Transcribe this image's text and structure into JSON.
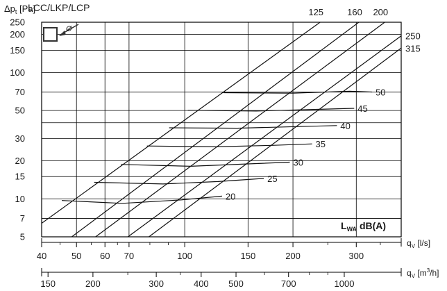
{
  "chart_data": {
    "type": "line",
    "title": "LCC/LKP/LCP",
    "scale": {
      "x": "log",
      "y": "log"
    },
    "ylabel": {
      "main": "Δp",
      "sub": "t",
      "unit": " [Pa]"
    },
    "x1label": {
      "main": "q",
      "sub": "V",
      "unit": " [l/s]"
    },
    "x2label": {
      "main": "q",
      "sub": "V",
      "unit_pre": " [m",
      "sup": "3",
      "unit_post": "/h]"
    },
    "legend_text": {
      "main": "L",
      "sub": "WA",
      "unit": " dB(A)"
    },
    "ylim": [
      5,
      250
    ],
    "xlim_ls": [
      40,
      400
    ],
    "xlim_m3h": [
      144,
      1440
    ],
    "yticks": [
      5,
      7,
      10,
      15,
      20,
      30,
      50,
      70,
      100,
      150,
      200,
      250
    ],
    "ytick_labels": [
      "5",
      "7",
      "10",
      "15",
      "20",
      "30",
      "50",
      "70",
      "100",
      "150",
      "200",
      "250"
    ],
    "xticks_ls": [
      40,
      50,
      60,
      70,
      100,
      150,
      200,
      300
    ],
    "xtick_labels_ls": [
      "40",
      "50",
      "60",
      "70",
      "100",
      "150",
      "200",
      "300"
    ],
    "xticks_m3h": [
      150,
      200,
      300,
      400,
      500,
      700,
      1000
    ],
    "xtick_labels_m3h": [
      "150",
      "200",
      "300",
      "400",
      "500",
      "700",
      "1000"
    ],
    "xminor_ls": [
      45,
      55,
      65,
      80,
      90,
      250,
      350
    ],
    "xminor_m3h": [
      250,
      350,
      600,
      800,
      900
    ],
    "vgrid_ls": [
      50,
      60,
      70,
      100,
      150,
      200,
      300
    ],
    "hgrid": [
      7,
      10,
      15,
      20,
      30,
      40,
      50,
      70,
      100,
      150,
      200
    ],
    "series": [
      {
        "name": "125",
        "points": [
          [
            40,
            6.4
          ],
          [
            238,
            250
          ]
        ]
      },
      {
        "name": "160",
        "points": [
          [
            48.5,
            5
          ],
          [
            305,
            250
          ]
        ]
      },
      {
        "name": "200",
        "points": [
          [
            56.5,
            5
          ],
          [
            360,
            250
          ]
        ]
      },
      {
        "name": "250",
        "points": [
          [
            69.5,
            5
          ],
          [
            400,
            195
          ]
        ]
      },
      {
        "name": "315",
        "points": [
          [
            79.5,
            5
          ],
          [
            400,
            156
          ]
        ]
      }
    ],
    "noise_curves": [
      {
        "name": "20",
        "points": [
          [
            45.5,
            9.7
          ],
          [
            67,
            9.2
          ],
          [
            98,
            9.8
          ],
          [
            127,
            10.5
          ]
        ]
      },
      {
        "name": "25",
        "points": [
          [
            56,
            13.5
          ],
          [
            87,
            13.1
          ],
          [
            124,
            13.7
          ],
          [
            166,
            14.5
          ]
        ]
      },
      {
        "name": "30",
        "points": [
          [
            66.5,
            18.7
          ],
          [
            104,
            18.1
          ],
          [
            150,
            18.9
          ],
          [
            196,
            19.5
          ]
        ]
      },
      {
        "name": "35",
        "points": [
          [
            78.5,
            26.2
          ],
          [
            121,
            25.8
          ],
          [
            175,
            26.5
          ],
          [
            226,
            27.2
          ]
        ]
      },
      {
        "name": "40",
        "points": [
          [
            90.5,
            36.5
          ],
          [
            140,
            36.2
          ],
          [
            205,
            37.3
          ],
          [
            265,
            38
          ]
        ]
      },
      {
        "name": "45",
        "points": [
          [
            102,
            50.2
          ],
          [
            158,
            49.5
          ],
          [
            228,
            51
          ],
          [
            296,
            52
          ]
        ]
      },
      {
        "name": "50",
        "points": [
          [
            128,
            69.2
          ],
          [
            200,
            68.6
          ],
          [
            288,
            71
          ],
          [
            332,
            70
          ]
        ]
      }
    ],
    "annotation": "Ø",
    "colors": {
      "lines": "#111111",
      "grid": "#000000",
      "text": "#1a1a1a"
    }
  }
}
